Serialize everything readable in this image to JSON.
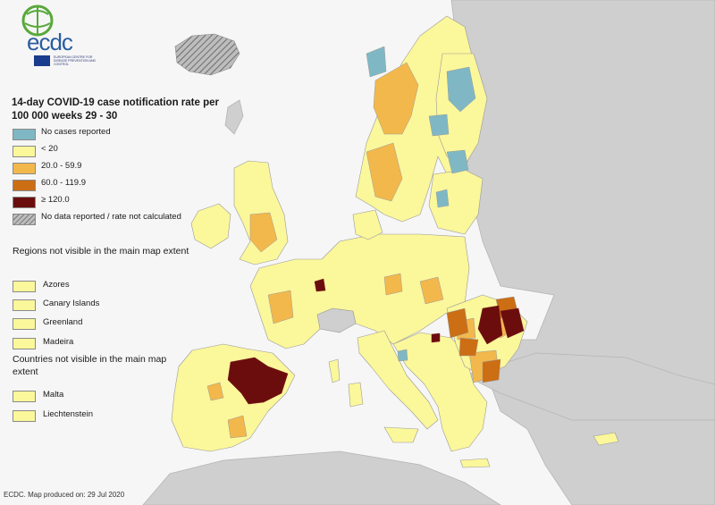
{
  "logo": {
    "text": "ecdc",
    "subtitle": "EUROPEAN CENTRE FOR DISEASE PREVENTION AND CONTROL"
  },
  "title": "14-day COVID-19 case notification rate per 100 000 weeks 29 - 30",
  "legend": [
    {
      "label": "No cases reported",
      "color": "#7fb8c4"
    },
    {
      "label": "< 20",
      "color": "#fbf79b"
    },
    {
      "label": "20.0 - 59.9",
      "color": "#f3b84b"
    },
    {
      "label": "60.0 - 119.9",
      "color": "#cc6e14"
    },
    {
      "label": "≥ 120.0",
      "color": "#6b0d0d"
    },
    {
      "label": "No data reported / rate not calculated",
      "color": "hatched-gray"
    }
  ],
  "regions_title": "Regions not visible in the main map extent",
  "regions": [
    "Azores",
    "Canary Islands",
    "Greenland",
    "Madeira"
  ],
  "countries_title": "Countries not visible in the main map extent",
  "countries": [
    "Malta",
    "Liechtenstein"
  ],
  "source": "ECDC. Map produced on: 29 Jul 2020",
  "colors": {
    "sea": "#f6f6f6",
    "non_eu_land": "#cfcfcf",
    "border": "#9a9a9a"
  }
}
